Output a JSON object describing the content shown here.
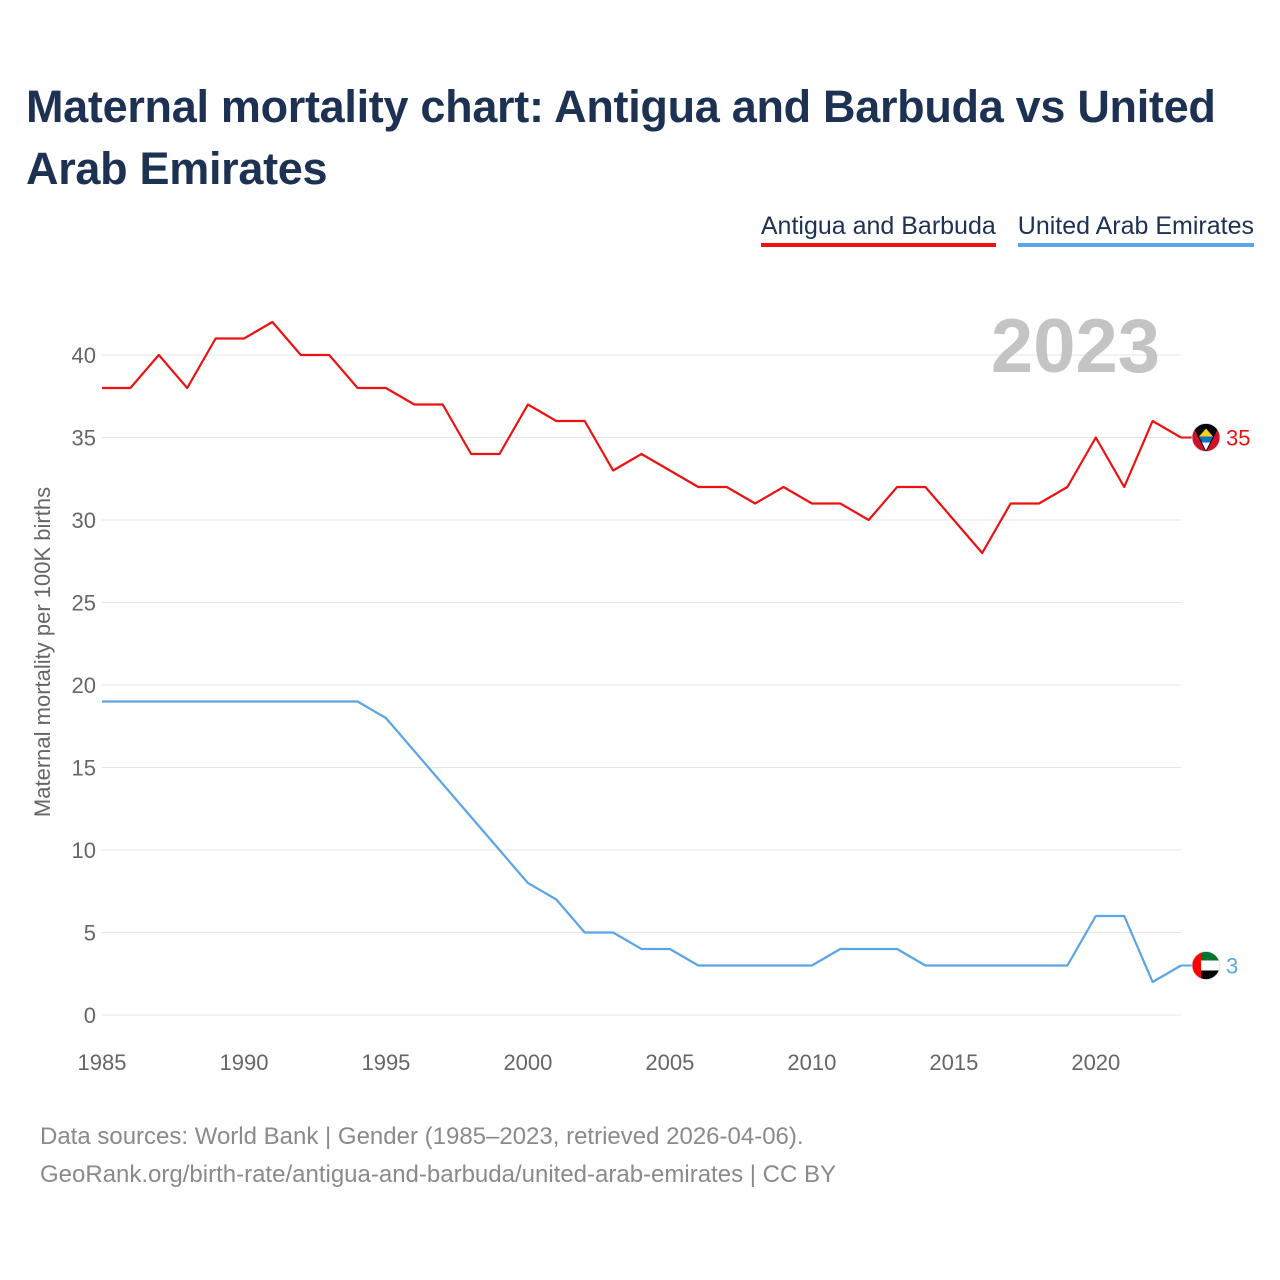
{
  "title": "Maternal mortality chart: Antigua and Barbuda vs United Arab Emirates",
  "legend": [
    {
      "label": "Antigua and Barbuda",
      "color": "#ee1111"
    },
    {
      "label": "United Arab Emirates",
      "color": "#5ba4e6"
    }
  ],
  "footer": {
    "sources": "Data sources: World Bank | Gender (1985–2023, retrieved 2026-04-06).",
    "url": "GeoRank.org/birth-rate/antigua-and-barbuda/united-arab-emirates | CC BY"
  },
  "chart_data": {
    "type": "line",
    "title": "Maternal mortality chart: Antigua and Barbuda vs United Arab Emirates",
    "year_label": "2023",
    "xlabel": "",
    "ylabel": "Maternal mortality per 100K births",
    "xlim": [
      1985,
      2023
    ],
    "ylim": [
      0,
      40
    ],
    "x_ticks": [
      1985,
      1990,
      1995,
      2000,
      2005,
      2010,
      2015,
      2020
    ],
    "y_ticks": [
      0,
      5,
      10,
      15,
      20,
      25,
      30,
      35,
      40
    ],
    "x": [
      1985,
      1986,
      1987,
      1988,
      1989,
      1990,
      1991,
      1992,
      1993,
      1994,
      1995,
      1996,
      1997,
      1998,
      1999,
      2000,
      2001,
      2002,
      2003,
      2004,
      2005,
      2006,
      2007,
      2008,
      2009,
      2010,
      2011,
      2012,
      2013,
      2014,
      2015,
      2016,
      2017,
      2018,
      2019,
      2020,
      2021,
      2022,
      2023
    ],
    "series": [
      {
        "name": "Antigua and Barbuda",
        "color": "#ee1111",
        "end_label": "35",
        "flag": "antigua-flag-icon",
        "values": [
          38,
          38,
          40,
          38,
          41,
          41,
          42,
          40,
          40,
          38,
          38,
          37,
          37,
          34,
          34,
          37,
          36,
          36,
          33,
          34,
          33,
          32,
          32,
          31,
          32,
          31,
          31,
          30,
          32,
          32,
          30,
          28,
          31,
          31,
          32,
          35,
          32,
          36,
          35
        ]
      },
      {
        "name": "United Arab Emirates",
        "color": "#5ba4e6",
        "end_label": "3",
        "flag": "uae-flag-icon",
        "values": [
          19,
          19,
          19,
          19,
          19,
          19,
          19,
          19,
          19,
          19,
          18,
          16,
          14,
          12,
          10,
          8,
          7,
          5,
          5,
          4,
          4,
          3,
          3,
          3,
          3,
          3,
          4,
          4,
          4,
          3,
          3,
          3,
          3,
          3,
          3,
          6,
          6,
          2,
          3
        ]
      }
    ]
  }
}
